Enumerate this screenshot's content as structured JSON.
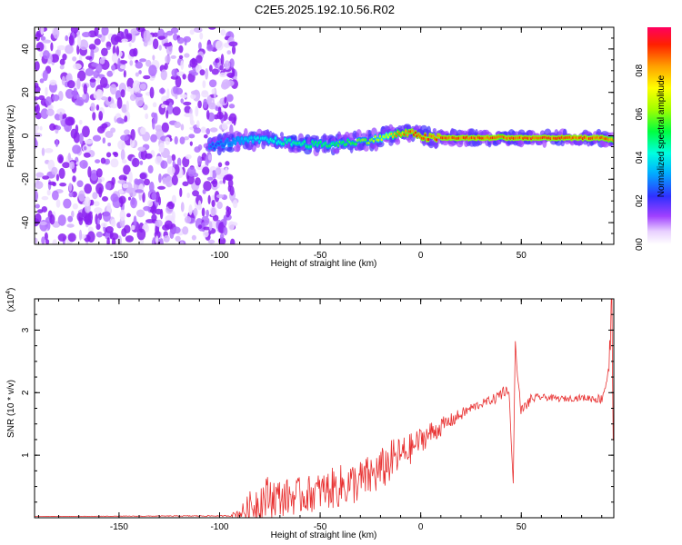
{
  "title": "C2E5.2025.192.10.56.R02",
  "colors": {
    "snr_line": "#e83030",
    "axis": "#000000"
  },
  "chart_data": [
    {
      "type": "heatmap",
      "xlabel": "Height of straight line (km)",
      "ylabel": "Frequency (Hz)",
      "xlim": [
        -192,
        96
      ],
      "ylim": [
        -50,
        50
      ],
      "x_ticks": [
        "-150",
        "-100",
        "-50",
        "0",
        "50"
      ],
      "y_ticks": [
        "40",
        "20",
        "0",
        "-20",
        "-40"
      ],
      "colorbar": {
        "label": "Normalized spectral amplitude",
        "range": [
          0,
          1
        ],
        "ticks": [
          "0.0",
          "0.2",
          "0.4",
          "0.6",
          "0.8"
        ],
        "colormap": "white-violet-blue-cyan-green-yellow-orange-red"
      },
      "noise_region": {
        "x_range": [
          -192,
          -92
        ],
        "freq_range": [
          -50,
          50
        ],
        "amplitude": 0.2
      },
      "signal_track": {
        "x": [
          -105,
          -95,
          -85,
          -75,
          -65,
          -55,
          -45,
          -35,
          -25,
          -15,
          -10,
          -2,
          0,
          3,
          10,
          20,
          30,
          38,
          40,
          42,
          50,
          60,
          70,
          80,
          90,
          96
        ],
        "frequency": [
          -5,
          -3,
          -2,
          -2,
          -3,
          -4,
          -4,
          -3,
          -2,
          0,
          1,
          1,
          0,
          -1,
          -1,
          -1,
          -1,
          -1,
          0,
          -1,
          -1,
          -1,
          -1,
          -1,
          -1,
          -2
        ],
        "amplitude": [
          0.2,
          0.3,
          0.4,
          0.45,
          0.5,
          0.55,
          0.55,
          0.6,
          0.65,
          0.8,
          0.9,
          0.95,
          0.95,
          0.95,
          0.95,
          0.95,
          0.95,
          0.95,
          0.9,
          0.95,
          0.95,
          0.95,
          0.95,
          0.95,
          0.95,
          0.9
        ]
      }
    },
    {
      "type": "line",
      "xlabel": "Height of straight line (km)",
      "ylabel": "SNR (10 * v/v)",
      "y_multiplier": "(x10",
      "y_multiplier_exp": "4",
      "y_multiplier_close": ")",
      "xlim": [
        -192,
        96
      ],
      "ylim": [
        0,
        3.5
      ],
      "x_ticks": [
        "-150",
        "-100",
        "-50",
        "0",
        "50"
      ],
      "y_ticks": [
        "3",
        "2",
        "1"
      ],
      "series": [
        {
          "trend_x": [
            -192,
            -96,
            -92,
            -88,
            -84,
            -80,
            -75,
            -70,
            -60,
            -50,
            -40,
            -30,
            -20,
            -15,
            -10,
            -5,
            0,
            5,
            10,
            15,
            20,
            25,
            30,
            35,
            38,
            40,
            42,
            44,
            45,
            46,
            47,
            48,
            50,
            55,
            60,
            70,
            80,
            90,
            93,
            94,
            95,
            96
          ],
          "trend_y": [
            0.02,
            0.03,
            0.06,
            0.1,
            0.18,
            0.28,
            0.35,
            0.32,
            0.35,
            0.42,
            0.5,
            0.58,
            0.75,
            0.9,
            1.0,
            1.1,
            1.25,
            1.35,
            1.45,
            1.55,
            1.65,
            1.75,
            1.82,
            1.88,
            1.92,
            2.0,
            2.05,
            2.0,
            1.2,
            0.55,
            2.85,
            2.3,
            1.7,
            1.9,
            1.93,
            1.9,
            1.92,
            1.9,
            2.3,
            2.6,
            3.4,
            0.4
          ],
          "noise_amplitude": [
            0.0,
            0.01,
            0.05,
            0.15,
            0.3,
            0.35,
            0.35,
            0.3,
            0.3,
            0.3,
            0.35,
            0.35,
            0.35,
            0.35,
            0.3,
            0.25,
            0.2,
            0.2,
            0.15,
            0.12,
            0.1,
            0.08,
            0.07,
            0.07,
            0.1,
            0.15,
            0.1,
            0.0,
            0.0,
            0.0,
            0.0,
            0.0,
            0.1,
            0.08,
            0.05,
            0.05,
            0.05,
            0.08,
            0.3,
            0.4,
            0.4,
            0.0
          ]
        }
      ]
    }
  ]
}
